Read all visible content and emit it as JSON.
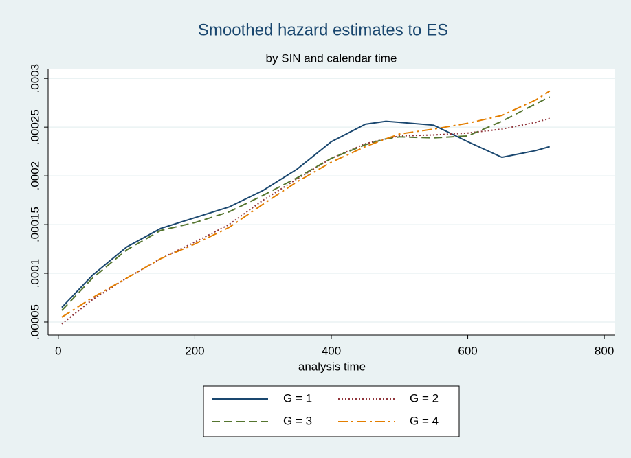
{
  "chart_data": {
    "type": "line",
    "title": "Smoothed hazard estimates to ES",
    "subtitle": "by SIN and calendar time",
    "x_label": "analysis time",
    "x": [
      5,
      50,
      100,
      150,
      200,
      250,
      300,
      350,
      400,
      450,
      480,
      500,
      550,
      600,
      650,
      700,
      720
    ],
    "series": [
      {
        "name": "G = 1",
        "color": "#1a476f",
        "dash": "solid",
        "values": [
          6.5e-05,
          9.8e-05,
          0.000127,
          0.000146,
          0.000157,
          0.000168,
          0.000185,
          0.000207,
          0.000235,
          0.000253,
          0.000256,
          0.000255,
          0.000252,
          0.000235,
          0.000219,
          0.000226,
          0.00023
        ]
      },
      {
        "name": "G = 2",
        "color": "#90353b",
        "dash": "dot",
        "values": [
          4.8e-05,
          7.3e-05,
          9.5e-05,
          0.000115,
          0.000132,
          0.00015,
          0.000175,
          0.000197,
          0.000218,
          0.000233,
          0.000238,
          0.000241,
          0.000242,
          0.000244,
          0.000248,
          0.000255,
          0.000259
        ]
      },
      {
        "name": "G = 3",
        "color": "#55752f",
        "dash": "dash",
        "values": [
          6.2e-05,
          9.5e-05,
          0.000124,
          0.000144,
          0.000152,
          0.000163,
          0.00018,
          0.000198,
          0.000218,
          0.000232,
          0.000238,
          0.00024,
          0.000239,
          0.000241,
          0.000256,
          0.000274,
          0.000281
        ]
      },
      {
        "name": "G = 4",
        "color": "#e37e00",
        "dash": "dashdot",
        "values": [
          5.5e-05,
          7.5e-05,
          9.5e-05,
          0.000115,
          0.00013,
          0.000147,
          0.000171,
          0.000194,
          0.000214,
          0.00023,
          0.000238,
          0.000243,
          0.000248,
          0.000254,
          0.000262,
          0.000278,
          0.000287
        ]
      }
    ],
    "xlim": [
      -15,
      816
    ],
    "xticks": [
      0,
      200,
      400,
      600,
      800
    ],
    "ylim": [
      3.66e-05,
      0.00031
    ],
    "yticks": [
      {
        "value": 5e-05,
        "label": ".00005"
      },
      {
        "value": 0.0001,
        "label": ".0001"
      },
      {
        "value": 0.00015,
        "label": ".00015"
      },
      {
        "value": 0.0002,
        "label": ".0002"
      },
      {
        "value": 0.00025,
        "label": ".00025"
      },
      {
        "value": 0.0003,
        "label": ".0003"
      }
    ],
    "grid": true,
    "legend": "bottom"
  }
}
